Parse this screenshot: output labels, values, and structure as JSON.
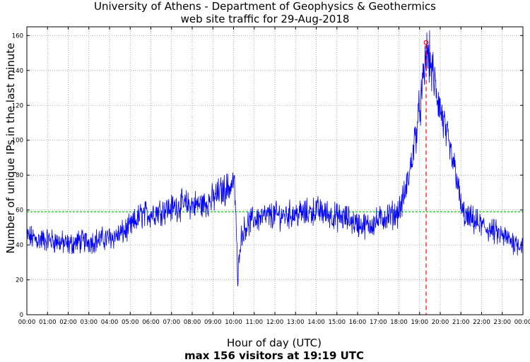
{
  "chart_data": {
    "type": "line",
    "title": "University of Athens - Department of Geophysics & Geothermics",
    "subtitle": "web site traffic for 29-Aug-2018",
    "xlabel": "Hour of day (UTC)",
    "ylabel": "Number of unique IPs in the last minute",
    "caption": "max 156 visitors at 19:19 UTC",
    "x_unit": "hour",
    "xlim": [
      0,
      24
    ],
    "ylim": [
      0,
      165
    ],
    "x_ticks": [
      0,
      1,
      2,
      3,
      4,
      5,
      6,
      7,
      8,
      9,
      10,
      11,
      12,
      13,
      14,
      15,
      16,
      17,
      18,
      19,
      20,
      21,
      22,
      23,
      24
    ],
    "x_tick_labels": [
      "00:00",
      "01:00",
      "02:00",
      "03:00",
      "04:00",
      "05:00",
      "06:00",
      "07:00",
      "08:00",
      "09:00",
      "10:00",
      "11:00",
      "12:00",
      "13:00",
      "14:00",
      "15:00",
      "16:00",
      "17:00",
      "18:00",
      "19:00",
      "20:00",
      "21:00",
      "22:00",
      "23:00",
      "00:00"
    ],
    "y_ticks": [
      0,
      20,
      40,
      60,
      80,
      100,
      120,
      140,
      160
    ],
    "y_tick_labels": [
      "0",
      "20",
      "40",
      "60",
      "80",
      "100",
      "120",
      "140",
      "160"
    ],
    "grid": true,
    "series": [
      {
        "name": "visitors",
        "color": "#0000ff",
        "x": [
          0,
          0.5,
          1,
          1.5,
          2,
          2.5,
          3,
          3.5,
          4,
          4.5,
          5,
          5.5,
          6,
          6.5,
          7,
          7.5,
          8,
          8.5,
          9,
          9.3,
          9.6,
          9.9,
          10.0,
          10.05,
          10.1,
          10.15,
          10.2,
          10.25,
          10.3,
          10.4,
          10.6,
          10.8,
          11,
          11.5,
          12,
          12.5,
          13,
          13.5,
          14,
          14.5,
          15,
          15.5,
          16,
          16.5,
          17,
          17.3,
          17.6,
          17.9,
          18.1,
          18.3,
          18.5,
          18.7,
          18.9,
          19.1,
          19.2,
          19.32,
          19.45,
          19.6,
          19.8,
          20.0,
          20.2,
          20.4,
          20.6,
          20.8,
          20.95,
          21.1,
          21.3,
          21.6,
          22,
          22.5,
          23,
          23.5,
          24
        ],
        "values": [
          45,
          43,
          43,
          42,
          40,
          42,
          42,
          43,
          44,
          46,
          50,
          57,
          58,
          60,
          61,
          63,
          63,
          63,
          66,
          70,
          72,
          74,
          77,
          72,
          60,
          45,
          15,
          30,
          40,
          46,
          51,
          53,
          55,
          56,
          57,
          57,
          58,
          58,
          60,
          58,
          56,
          55,
          52,
          51,
          54,
          56,
          57,
          58,
          62,
          70,
          80,
          95,
          110,
          125,
          135,
          150,
          148,
          140,
          128,
          118,
          108,
          97,
          88,
          80,
          65,
          58,
          55,
          54,
          51,
          48,
          45,
          42,
          40
        ]
      },
      {
        "name": "average",
        "color": "#00cc00",
        "style": "dashed",
        "value": 59
      }
    ],
    "max_marker": {
      "time": "19:19",
      "x": 19.317,
      "value": 156,
      "color": "#ff0000"
    }
  }
}
